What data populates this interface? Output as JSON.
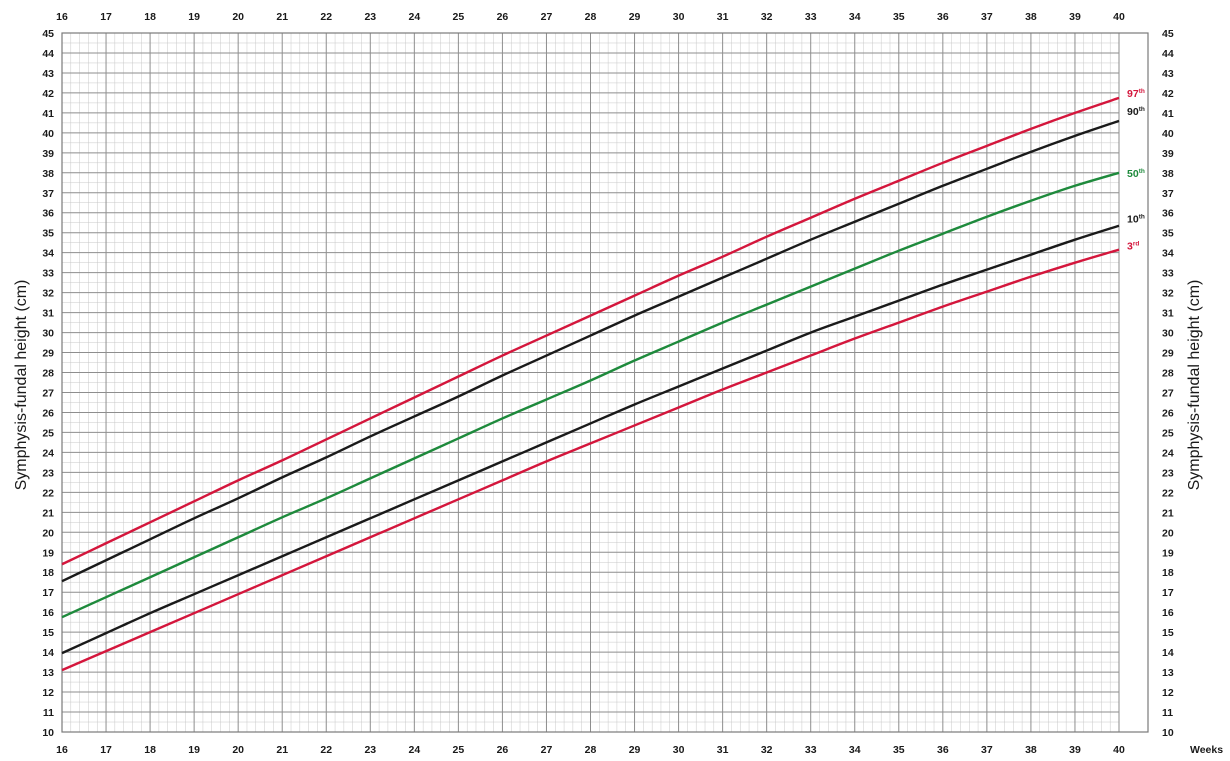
{
  "chart_data": {
    "type": "line",
    "xlabel_units": "Weeks",
    "ylabel_left": "Symphysis-fundal height (cm)",
    "ylabel_right": "Symphysis-fundal height (cm)",
    "xlim": [
      16,
      40
    ],
    "ylim": [
      10,
      45
    ],
    "x_ticks": [
      16,
      17,
      18,
      19,
      20,
      21,
      22,
      23,
      24,
      25,
      26,
      27,
      28,
      29,
      30,
      31,
      32,
      33,
      34,
      35,
      36,
      37,
      38,
      39,
      40
    ],
    "y_ticks": [
      10,
      11,
      12,
      13,
      14,
      15,
      16,
      17,
      18,
      19,
      20,
      21,
      22,
      23,
      24,
      25,
      26,
      27,
      28,
      29,
      30,
      31,
      32,
      33,
      34,
      35,
      36,
      37,
      38,
      39,
      40,
      41,
      42,
      43,
      44,
      45
    ],
    "grid": true,
    "x": [
      16,
      17,
      18,
      19,
      20,
      21,
      22,
      23,
      24,
      25,
      26,
      27,
      28,
      29,
      30,
      31,
      32,
      33,
      34,
      35,
      36,
      37,
      38,
      39,
      40
    ],
    "series": [
      {
        "name": "97th",
        "label_main": "97",
        "label_sup": "th",
        "color": "#d4163c",
        "values": [
          18.4,
          19.45,
          20.5,
          21.55,
          22.6,
          23.6,
          24.65,
          25.7,
          26.75,
          27.8,
          28.85,
          29.85,
          30.85,
          31.85,
          32.85,
          33.8,
          34.8,
          35.75,
          36.7,
          37.6,
          38.5,
          39.35,
          40.2,
          41.0,
          41.75
        ]
      },
      {
        "name": "90th",
        "label_main": "90",
        "label_sup": "th",
        "color": "#1a1a1a",
        "values": [
          17.55,
          18.6,
          19.65,
          20.7,
          21.7,
          22.75,
          23.75,
          24.8,
          25.8,
          26.8,
          27.85,
          28.85,
          29.85,
          30.85,
          31.8,
          32.75,
          33.7,
          34.65,
          35.55,
          36.45,
          37.35,
          38.2,
          39.05,
          39.85,
          40.6
        ]
      },
      {
        "name": "50th",
        "label_main": "50",
        "label_sup": "th",
        "color": "#1e8a3c",
        "values": [
          15.75,
          16.75,
          17.75,
          18.75,
          19.75,
          20.75,
          21.7,
          22.7,
          23.7,
          24.7,
          25.7,
          26.65,
          27.6,
          28.6,
          29.55,
          30.5,
          31.4,
          32.3,
          33.2,
          34.1,
          34.95,
          35.8,
          36.6,
          37.35,
          38.0
        ]
      },
      {
        "name": "10th",
        "label_main": "10",
        "label_sup": "th",
        "color": "#1a1a1a",
        "values": [
          13.95,
          14.95,
          15.95,
          16.9,
          17.85,
          18.8,
          19.75,
          20.7,
          21.65,
          22.6,
          23.55,
          24.5,
          25.45,
          26.4,
          27.3,
          28.2,
          29.1,
          30.0,
          30.8,
          31.6,
          32.4,
          33.15,
          33.9,
          34.65,
          35.35
        ]
      },
      {
        "name": "3rd",
        "label_main": "3",
        "label_sup": "rd",
        "color": "#d4163c",
        "values": [
          13.1,
          14.05,
          15.0,
          15.95,
          16.9,
          17.85,
          18.8,
          19.75,
          20.7,
          21.65,
          22.6,
          23.55,
          24.45,
          25.35,
          26.25,
          27.15,
          28.0,
          28.85,
          29.7,
          30.5,
          31.3,
          32.05,
          32.8,
          33.5,
          34.15
        ]
      }
    ]
  }
}
